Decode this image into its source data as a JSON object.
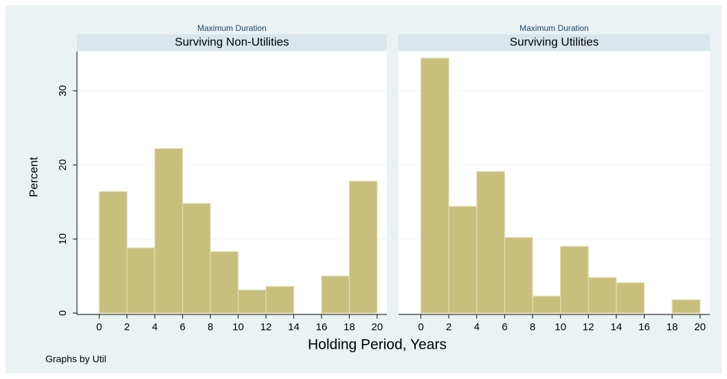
{
  "y_label": "Percent",
  "x_label": "Holding Period, Years",
  "note": "Graphs by Util",
  "chart_data": [
    {
      "type": "histogram",
      "subtitle": "Maximum Duration",
      "title": "Surviving Non-Utilities",
      "bins": [
        0,
        2,
        4,
        6,
        8,
        10,
        12,
        14,
        16,
        18,
        20
      ],
      "values": [
        16.4,
        8.8,
        22.2,
        14.8,
        8.3,
        3.1,
        3.6,
        0,
        5.0,
        17.8
      ],
      "color": "#c9bf7d",
      "xlim": [
        -1.6,
        20.7
      ],
      "ylim": [
        0,
        35.3
      ],
      "xticks": [
        0,
        2,
        4,
        6,
        8,
        10,
        12,
        14,
        16,
        18,
        20
      ],
      "yticks": [
        0,
        10,
        20,
        30
      ],
      "grid": true
    },
    {
      "type": "histogram",
      "subtitle": "Maximum Duration",
      "title": "Surviving Utilities",
      "bins": [
        0,
        2,
        4,
        6,
        8,
        10,
        12,
        14,
        16,
        18,
        20
      ],
      "values": [
        34.4,
        14.4,
        19.1,
        10.2,
        2.3,
        9.0,
        4.8,
        4.1,
        0,
        1.8
      ],
      "color": "#c9bf7d",
      "xlim": [
        -1.6,
        20.7
      ],
      "ylim": [
        0,
        35.3
      ],
      "xticks": [
        0,
        2,
        4,
        6,
        8,
        10,
        12,
        14,
        16,
        18,
        20
      ],
      "yticks": [
        0,
        10,
        20,
        30
      ],
      "grid": true
    }
  ]
}
